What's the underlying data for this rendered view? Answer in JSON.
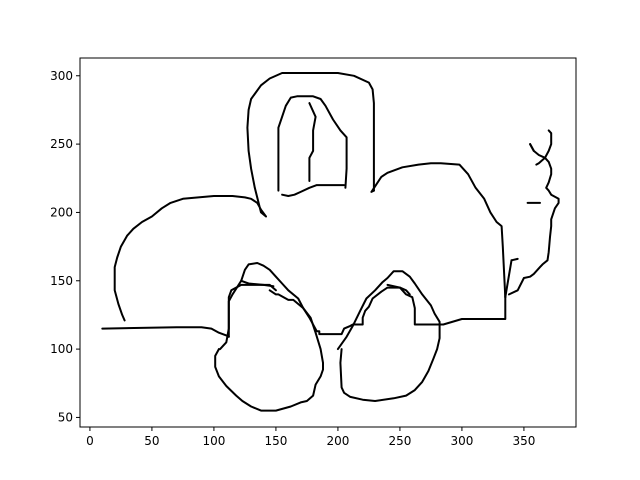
{
  "chart_data": {
    "type": "line",
    "title": "",
    "xlabel": "",
    "ylabel": "",
    "xlim": [
      -8,
      392
    ],
    "ylim": [
      43,
      313
    ],
    "x_ticks": [
      0,
      50,
      100,
      150,
      200,
      250,
      300,
      350
    ],
    "y_ticks": [
      50,
      100,
      150,
      200,
      250,
      300
    ],
    "grid": false,
    "line_color": "#000000",
    "series": [
      {
        "points": [
          [
            10,
            115
          ],
          [
            70,
            116
          ],
          [
            90,
            116
          ],
          [
            98,
            115
          ],
          [
            104,
            112
          ],
          [
            110,
            110
          ],
          [
            112,
            109
          ]
        ]
      },
      {
        "points": [
          [
            112,
            109
          ],
          [
            112,
            138
          ],
          [
            114,
            143
          ],
          [
            122,
            147
          ],
          [
            145,
            147
          ],
          [
            150,
            143
          ]
        ]
      },
      {
        "points": [
          [
            145,
            143
          ],
          [
            150,
            140
          ],
          [
            152,
            140
          ],
          [
            160,
            136
          ],
          [
            164,
            136
          ],
          [
            172,
            130
          ],
          [
            177,
            123
          ],
          [
            183,
            113
          ],
          [
            185,
            113
          ],
          [
            185,
            111
          ],
          [
            200,
            111
          ],
          [
            203,
            111
          ],
          [
            205,
            115
          ],
          [
            210,
            117
          ],
          [
            212,
            118
          ],
          [
            220,
            118
          ],
          [
            220,
            120
          ],
          [
            220,
            123
          ],
          [
            222,
            128
          ],
          [
            225,
            131
          ],
          [
            228,
            137
          ],
          [
            235,
            142
          ],
          [
            240,
            145
          ],
          [
            244,
            145
          ],
          [
            250,
            145
          ],
          [
            255,
            140
          ],
          [
            260,
            138
          ],
          [
            262,
            130
          ],
          [
            262,
            125
          ],
          [
            262,
            120
          ],
          [
            262,
            118
          ],
          [
            275,
            118
          ],
          [
            285,
            118
          ],
          [
            300,
            122
          ],
          [
            335,
            122
          ],
          [
            335,
            138
          ],
          [
            335,
            142
          ]
        ]
      },
      {
        "points": [
          [
            338,
            140
          ],
          [
            345,
            143
          ],
          [
            350,
            152
          ],
          [
            355,
            153
          ],
          [
            358,
            155
          ],
          [
            363,
            160
          ],
          [
            365,
            162
          ],
          [
            369,
            165
          ],
          [
            370,
            171
          ],
          [
            371,
            182
          ],
          [
            372,
            190
          ],
          [
            372,
            195
          ],
          [
            375,
            203
          ],
          [
            378,
            207
          ],
          [
            378,
            210
          ],
          [
            372,
            213
          ],
          [
            370,
            216
          ],
          [
            368,
            218
          ],
          [
            370,
            222
          ],
          [
            372,
            228
          ],
          [
            372,
            232
          ],
          [
            370,
            237
          ],
          [
            367,
            240
          ],
          [
            362,
            242
          ],
          [
            358,
            245
          ],
          [
            355,
            250
          ]
        ]
      },
      {
        "points": [
          [
            358,
            245
          ],
          [
            355,
            250
          ]
        ]
      },
      {
        "points": [
          [
            370,
            260
          ],
          [
            372,
            258
          ],
          [
            372,
            250
          ],
          [
            370,
            245
          ],
          [
            367,
            240
          ],
          [
            362,
            236
          ],
          [
            360,
            235
          ]
        ]
      },
      {
        "points": [
          [
            353,
            207
          ],
          [
            363,
            207
          ]
        ]
      },
      {
        "points": [
          [
            340,
            165
          ],
          [
            345,
            166
          ]
        ]
      },
      {
        "points": [
          [
            335,
            138
          ],
          [
            340,
            165
          ]
        ]
      },
      {
        "points": [
          [
            335,
            138
          ],
          [
            333,
            175
          ],
          [
            332,
            190
          ],
          [
            328,
            193
          ],
          [
            323,
            200
          ],
          [
            318,
            210
          ],
          [
            311,
            218
          ],
          [
            305,
            228
          ],
          [
            298,
            235
          ],
          [
            283,
            236
          ],
          [
            275,
            236
          ],
          [
            265,
            235
          ],
          [
            252,
            233
          ],
          [
            240,
            229
          ],
          [
            235,
            226
          ],
          [
            227,
            215
          ],
          [
            229,
            216
          ]
        ]
      },
      {
        "points": [
          [
            229,
            216
          ],
          [
            229,
            280
          ],
          [
            228,
            290
          ],
          [
            225,
            295
          ],
          [
            213,
            300
          ],
          [
            200,
            302
          ],
          [
            170,
            302
          ],
          [
            155,
            302
          ],
          [
            145,
            298
          ],
          [
            138,
            293
          ],
          [
            130,
            283
          ],
          [
            128,
            275
          ],
          [
            127,
            262
          ],
          [
            128,
            245
          ],
          [
            130,
            232
          ],
          [
            133,
            218
          ],
          [
            138,
            200
          ],
          [
            142,
            197
          ],
          [
            138,
            202
          ],
          [
            135,
            207
          ],
          [
            130,
            210
          ],
          [
            125,
            211
          ],
          [
            115,
            212
          ],
          [
            100,
            212
          ],
          [
            75,
            210
          ],
          [
            65,
            207
          ],
          [
            58,
            203
          ],
          [
            50,
            197
          ],
          [
            42,
            193
          ],
          [
            35,
            188
          ],
          [
            30,
            183
          ],
          [
            25,
            175
          ],
          [
            22,
            167
          ],
          [
            20,
            160
          ],
          [
            20,
            143
          ],
          [
            23,
            133
          ],
          [
            26,
            125
          ],
          [
            28,
            121
          ]
        ]
      },
      {
        "points": [
          [
            152,
            216
          ],
          [
            152,
            262
          ],
          [
            155,
            270
          ],
          [
            158,
            278
          ],
          [
            162,
            284
          ],
          [
            167,
            285
          ],
          [
            180,
            285
          ],
          [
            186,
            283
          ],
          [
            190,
            278
          ],
          [
            196,
            268
          ],
          [
            202,
            260
          ],
          [
            207,
            255
          ],
          [
            207,
            232
          ],
          [
            206,
            218
          ]
        ]
      },
      {
        "points": [
          [
            155,
            213
          ],
          [
            160,
            212
          ],
          [
            165,
            213
          ],
          [
            170,
            215
          ],
          [
            177,
            218
          ],
          [
            183,
            220
          ],
          [
            205,
            220
          ]
        ]
      },
      {
        "points": [
          [
            177,
            223
          ],
          [
            177,
            240
          ],
          [
            180,
            245
          ],
          [
            180,
            260
          ],
          [
            182,
            270
          ],
          [
            177,
            280
          ]
        ]
      },
      {
        "points": [
          [
            105,
            100
          ],
          [
            110,
            105
          ],
          [
            112,
            115
          ],
          [
            112,
            135
          ],
          [
            115,
            140
          ],
          [
            122,
            150
          ],
          [
            125,
            158
          ],
          [
            128,
            162
          ],
          [
            135,
            163
          ],
          [
            140,
            161
          ],
          [
            145,
            158
          ],
          [
            150,
            153
          ],
          [
            155,
            148
          ],
          [
            160,
            143
          ],
          [
            168,
            137
          ],
          [
            172,
            130
          ],
          [
            178,
            123
          ],
          [
            182,
            112
          ],
          [
            186,
            100
          ],
          [
            188,
            90
          ],
          [
            188,
            85
          ],
          [
            186,
            80
          ],
          [
            182,
            74
          ],
          [
            180,
            66
          ],
          [
            175,
            62
          ],
          [
            170,
            61
          ],
          [
            162,
            58
          ],
          [
            150,
            55
          ],
          [
            138,
            55
          ],
          [
            130,
            58
          ],
          [
            123,
            62
          ],
          [
            118,
            66
          ],
          [
            110,
            73
          ],
          [
            104,
            80
          ],
          [
            101,
            87
          ],
          [
            101,
            95
          ],
          [
            104,
            100
          ]
        ]
      },
      {
        "points": [
          [
            200,
            100
          ],
          [
            207,
            109
          ],
          [
            212,
            117
          ],
          [
            218,
            128
          ],
          [
            223,
            137
          ],
          [
            230,
            143
          ],
          [
            236,
            149
          ],
          [
            240,
            152
          ],
          [
            245,
            157
          ],
          [
            252,
            157
          ],
          [
            258,
            153
          ],
          [
            262,
            148
          ],
          [
            268,
            140
          ],
          [
            275,
            132
          ],
          [
            278,
            126
          ],
          [
            282,
            120
          ],
          [
            282,
            108
          ],
          [
            280,
            100
          ],
          [
            277,
            93
          ],
          [
            273,
            84
          ],
          [
            268,
            76
          ],
          [
            262,
            70
          ],
          [
            255,
            66
          ],
          [
            245,
            64
          ],
          [
            230,
            62
          ],
          [
            220,
            63
          ],
          [
            210,
            65
          ],
          [
            205,
            68
          ],
          [
            203,
            72
          ],
          [
            202,
            90
          ],
          [
            203,
            100
          ]
        ]
      },
      {
        "points": [
          [
            240,
            147
          ],
          [
            250,
            145
          ],
          [
            255,
            143
          ],
          [
            258,
            140
          ]
        ]
      },
      {
        "points": [
          [
            122,
            150
          ],
          [
            128,
            148
          ],
          [
            140,
            147
          ],
          [
            148,
            146
          ]
        ]
      }
    ]
  }
}
